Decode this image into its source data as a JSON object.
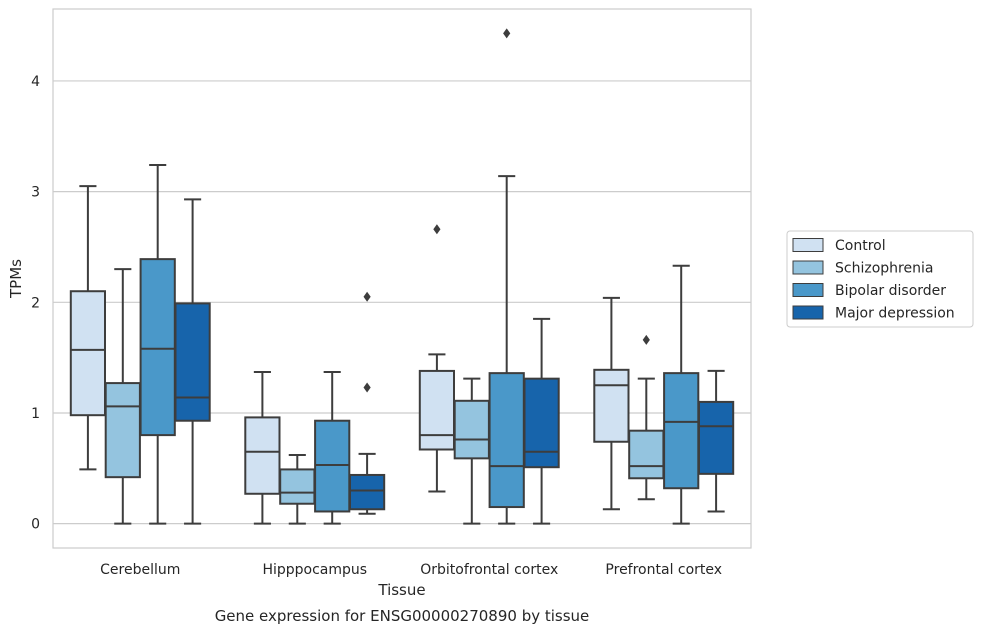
{
  "chart_data": {
    "type": "box",
    "title": "",
    "caption": "Gene expression for ENSG00000270890 by tissue",
    "xlabel": "Tissue",
    "ylabel": "TPMs",
    "ylim": [
      -0.22,
      4.65
    ],
    "yticks": [
      0,
      1,
      2,
      3,
      4
    ],
    "grid": "horizontal",
    "legend_position": "right",
    "categories": [
      "Cerebellum",
      "Hipppocampus",
      "Orbitofrontal cortex",
      "Prefrontal cortex"
    ],
    "series": [
      {
        "name": "Control",
        "color": "#d0e1f2",
        "boxes": [
          {
            "low": 0.49,
            "q1": 0.98,
            "median": 1.57,
            "q3": 2.1,
            "high": 3.05,
            "outliers": []
          },
          {
            "low": 0.0,
            "q1": 0.27,
            "median": 0.65,
            "q3": 0.96,
            "high": 1.37,
            "outliers": []
          },
          {
            "low": 0.29,
            "q1": 0.67,
            "median": 0.8,
            "q3": 1.38,
            "high": 1.53,
            "outliers": [
              2.66
            ]
          },
          {
            "low": 0.13,
            "q1": 0.74,
            "median": 1.25,
            "q3": 1.39,
            "high": 2.04,
            "outliers": []
          }
        ]
      },
      {
        "name": "Schizophrenia",
        "color": "#94c4df",
        "boxes": [
          {
            "low": 0.0,
            "q1": 0.42,
            "median": 1.06,
            "q3": 1.27,
            "high": 2.3,
            "outliers": []
          },
          {
            "low": 0.0,
            "q1": 0.18,
            "median": 0.28,
            "q3": 0.49,
            "high": 0.62,
            "outliers": []
          },
          {
            "low": 0.0,
            "q1": 0.59,
            "median": 0.76,
            "q3": 1.11,
            "high": 1.31,
            "outliers": []
          },
          {
            "low": 0.22,
            "q1": 0.41,
            "median": 0.52,
            "q3": 0.84,
            "high": 1.31,
            "outliers": [
              1.66
            ]
          }
        ]
      },
      {
        "name": "Bipolar disorder",
        "color": "#4a98c9",
        "boxes": [
          {
            "low": 0.0,
            "q1": 0.8,
            "median": 1.58,
            "q3": 2.39,
            "high": 3.24,
            "outliers": []
          },
          {
            "low": 0.0,
            "q1": 0.11,
            "median": 0.53,
            "q3": 0.93,
            "high": 1.37,
            "outliers": []
          },
          {
            "low": 0.0,
            "q1": 0.15,
            "median": 0.52,
            "q3": 1.36,
            "high": 3.14,
            "outliers": [
              4.43
            ]
          },
          {
            "low": 0.0,
            "q1": 0.32,
            "median": 0.92,
            "q3": 1.36,
            "high": 2.33,
            "outliers": []
          }
        ]
      },
      {
        "name": "Major depression",
        "color": "#1764ab",
        "boxes": [
          {
            "low": 0.0,
            "q1": 0.93,
            "median": 1.14,
            "q3": 1.99,
            "high": 2.93,
            "outliers": []
          },
          {
            "low": 0.09,
            "q1": 0.13,
            "median": 0.3,
            "q3": 0.44,
            "high": 0.63,
            "outliers": [
              1.23,
              2.05
            ]
          },
          {
            "low": 0.0,
            "q1": 0.51,
            "median": 0.65,
            "q3": 1.31,
            "high": 1.85,
            "outliers": []
          },
          {
            "low": 0.11,
            "q1": 0.45,
            "median": 0.88,
            "q3": 1.1,
            "high": 1.38,
            "outliers": []
          }
        ]
      }
    ]
  }
}
